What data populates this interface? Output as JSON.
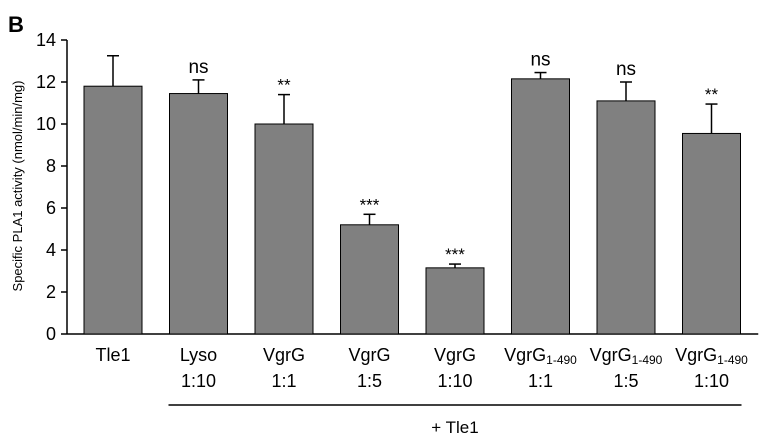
{
  "panel_label": "B",
  "bracket_label": "+ Tle1",
  "colors": {
    "bar": "#808080",
    "bar_stroke": "#000000",
    "axis": "#000000"
  },
  "chart_data": {
    "type": "bar",
    "title": "",
    "xlabel": "",
    "ylabel": "Specific PLA1 activity (nmol/min/mg)",
    "ylim": [
      0,
      14
    ],
    "yticks": [
      0,
      2,
      4,
      6,
      8,
      10,
      12,
      14
    ],
    "grid": false,
    "categories": [
      {
        "label": "Tle1",
        "line2": ""
      },
      {
        "label": "Lyso",
        "line2": "1:10"
      },
      {
        "label": "VgrG",
        "line2": "1:1"
      },
      {
        "label": "VgrG",
        "line2": "1:5"
      },
      {
        "label": "VgrG",
        "line2": "1:10"
      },
      {
        "label": "VgrG",
        "sub": "1-490",
        "line2": "1:1"
      },
      {
        "label": "VgrG",
        "sub": "1-490",
        "line2": "1:5"
      },
      {
        "label": "VgrG",
        "sub": "1-490",
        "line2": "1:10"
      }
    ],
    "values": [
      11.8,
      11.45,
      10.0,
      5.2,
      3.15,
      12.15,
      11.1,
      9.55
    ],
    "errors": [
      1.45,
      0.65,
      1.4,
      0.5,
      0.18,
      0.3,
      0.9,
      1.4
    ],
    "annotations": [
      "",
      "ns",
      "**",
      "***",
      "***",
      "ns",
      "ns",
      "**"
    ]
  }
}
